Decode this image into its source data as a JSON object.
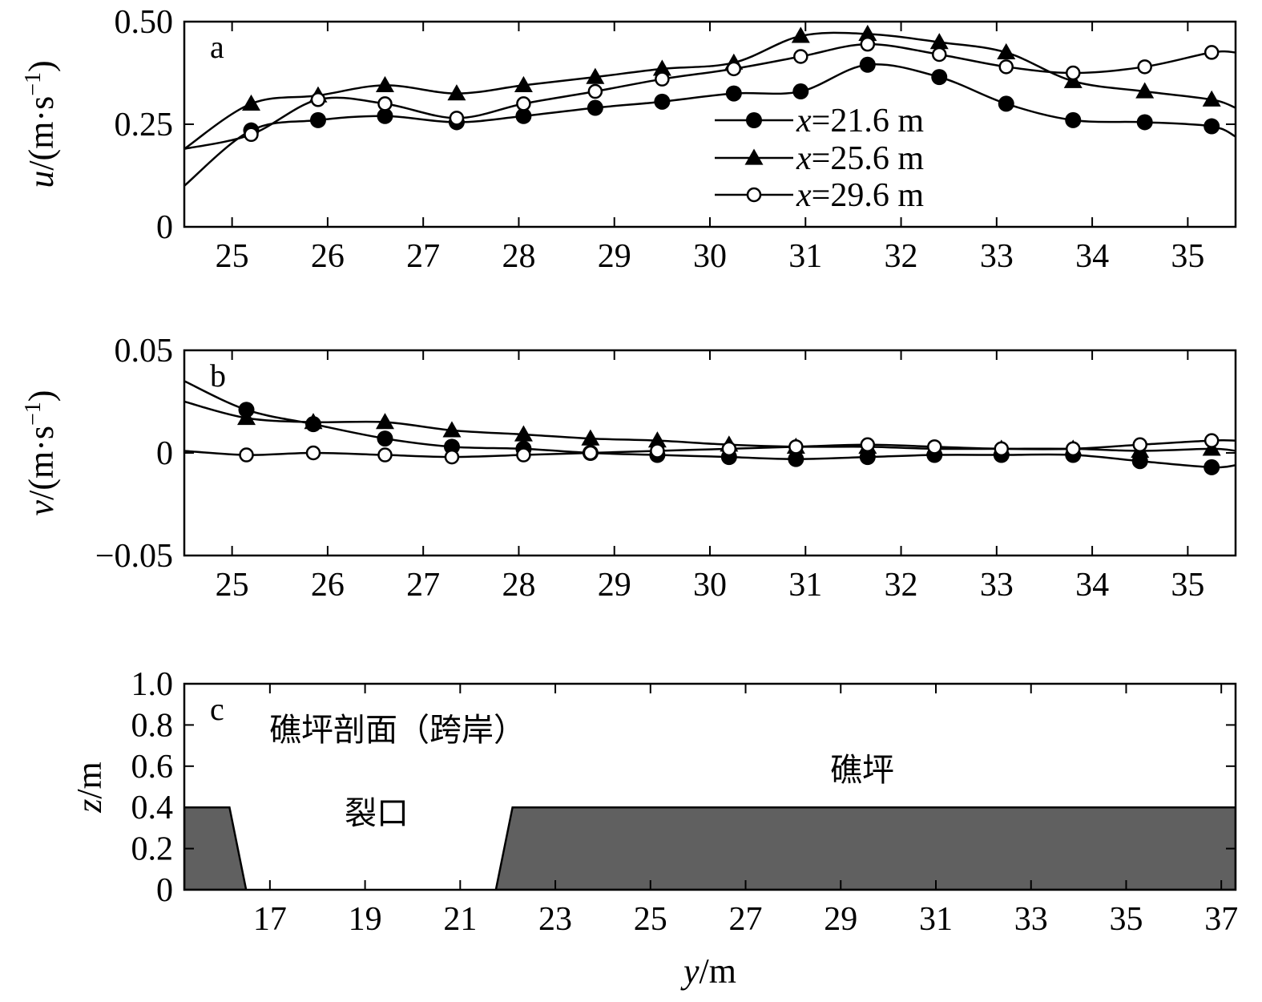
{
  "chart_data": [
    {
      "panel": "a",
      "type": "line",
      "ylabel": "u/(m·s⁻¹)",
      "ylabel_parts": {
        "var": "u",
        "unit": "/(m·s",
        "exp": "−1",
        "close": ")"
      },
      "xlim": [
        24.5,
        35.5
      ],
      "ylim": [
        0,
        0.5
      ],
      "xticks": [
        25,
        26,
        27,
        28,
        29,
        30,
        31,
        32,
        33,
        34,
        35
      ],
      "yticks": [
        0,
        0.25,
        0.5
      ],
      "ytick_labels": [
        "0",
        "0.25",
        "0.50"
      ],
      "legend_placement": "center-right",
      "series": [
        {
          "name": "x=21.6 m",
          "name_parts": {
            "var": "x",
            "rest": "=21.6 m"
          },
          "marker": "filled-circle",
          "x": [
            24.5,
            25.2,
            25.9,
            26.6,
            27.35,
            28.05,
            28.8,
            29.5,
            30.25,
            30.95,
            31.65,
            32.4,
            33.1,
            33.8,
            34.55,
            35.25,
            35.5
          ],
          "y": [
            0.1,
            0.235,
            0.26,
            0.27,
            0.255,
            0.27,
            0.29,
            0.305,
            0.325,
            0.33,
            0.395,
            0.365,
            0.3,
            0.26,
            0.255,
            0.245,
            0.22
          ],
          "markers_x": [
            25.2,
            25.9,
            26.6,
            27.35,
            28.05,
            28.8,
            29.5,
            30.25,
            30.95,
            31.65,
            32.4,
            33.1,
            33.8,
            34.55,
            35.25
          ],
          "markers_y": [
            0.235,
            0.26,
            0.27,
            0.255,
            0.27,
            0.29,
            0.305,
            0.325,
            0.33,
            0.395,
            0.365,
            0.3,
            0.26,
            0.255,
            0.245
          ]
        },
        {
          "name": "x=25.6 m",
          "name_parts": {
            "var": "x",
            "rest": "=25.6 m"
          },
          "marker": "filled-triangle",
          "x": [
            24.5,
            25.2,
            25.9,
            26.6,
            27.35,
            28.05,
            28.8,
            29.5,
            30.25,
            30.95,
            31.65,
            32.4,
            33.1,
            33.8,
            34.55,
            35.25,
            35.5
          ],
          "y": [
            0.19,
            0.3,
            0.32,
            0.345,
            0.325,
            0.345,
            0.365,
            0.385,
            0.4,
            0.465,
            0.47,
            0.45,
            0.425,
            0.355,
            0.33,
            0.31,
            0.29
          ],
          "markers_x": [
            25.2,
            25.9,
            26.6,
            27.35,
            28.05,
            28.8,
            29.5,
            30.25,
            30.95,
            31.65,
            32.4,
            33.1,
            33.8,
            34.55,
            35.25
          ],
          "markers_y": [
            0.3,
            0.32,
            0.345,
            0.325,
            0.345,
            0.365,
            0.385,
            0.4,
            0.465,
            0.47,
            0.45,
            0.425,
            0.355,
            0.33,
            0.31
          ]
        },
        {
          "name": "x=29.6 m",
          "name_parts": {
            "var": "x",
            "rest": "=29.6 m"
          },
          "marker": "open-circle",
          "x": [
            24.5,
            25.2,
            25.9,
            26.6,
            27.35,
            28.05,
            28.8,
            29.5,
            30.25,
            30.95,
            31.65,
            32.4,
            33.1,
            33.8,
            34.55,
            35.25,
            35.5
          ],
          "y": [
            0.19,
            0.225,
            0.31,
            0.3,
            0.265,
            0.3,
            0.33,
            0.36,
            0.385,
            0.415,
            0.445,
            0.42,
            0.39,
            0.375,
            0.39,
            0.425,
            0.425
          ],
          "markers_x": [
            25.2,
            25.9,
            26.6,
            27.35,
            28.05,
            28.8,
            29.5,
            30.25,
            30.95,
            31.65,
            32.4,
            33.1,
            33.8,
            34.55,
            35.25
          ],
          "markers_y": [
            0.225,
            0.31,
            0.3,
            0.265,
            0.3,
            0.33,
            0.36,
            0.385,
            0.415,
            0.445,
            0.42,
            0.39,
            0.375,
            0.39,
            0.425
          ]
        }
      ]
    },
    {
      "panel": "b",
      "type": "line",
      "ylabel": "v/(m·s⁻¹)",
      "ylabel_parts": {
        "var": "v",
        "unit": "/(m·s",
        "exp": "−1",
        "close": ")"
      },
      "xlim": [
        24.5,
        35.5
      ],
      "ylim": [
        -0.05,
        0.05
      ],
      "xticks": [
        25,
        26,
        27,
        28,
        29,
        30,
        31,
        32,
        33,
        34,
        35
      ],
      "yticks": [
        -0.05,
        0,
        0.05
      ],
      "ytick_labels": [
        "−0.05",
        "0",
        "0.05"
      ],
      "series": [
        {
          "name": "x=21.6 m",
          "marker": "filled-circle",
          "x": [
            24.5,
            25.15,
            25.85,
            26.6,
            27.3,
            28.05,
            28.75,
            29.45,
            30.2,
            30.9,
            31.65,
            32.35,
            33.05,
            33.8,
            34.5,
            35.25,
            35.5
          ],
          "y": [
            0.035,
            0.021,
            0.014,
            0.007,
            0.003,
            0.002,
            0.0,
            -0.001,
            -0.002,
            -0.003,
            -0.002,
            -0.001,
            -0.001,
            -0.001,
            -0.004,
            -0.007,
            -0.006
          ],
          "markers_x": [
            25.15,
            25.85,
            26.6,
            27.3,
            28.05,
            28.75,
            29.45,
            30.2,
            30.9,
            31.65,
            32.35,
            33.05,
            33.8,
            34.5,
            35.25
          ],
          "markers_y": [
            0.021,
            0.014,
            0.007,
            0.003,
            0.002,
            0.0,
            -0.001,
            -0.002,
            -0.003,
            -0.002,
            -0.001,
            -0.001,
            -0.001,
            -0.004,
            -0.007
          ]
        },
        {
          "name": "x=25.6 m",
          "marker": "filled-triangle",
          "x": [
            24.5,
            25.15,
            25.85,
            26.6,
            27.3,
            28.05,
            28.75,
            29.45,
            30.2,
            30.9,
            31.65,
            32.35,
            33.05,
            33.8,
            34.5,
            35.25,
            35.5
          ],
          "y": [
            0.025,
            0.017,
            0.015,
            0.015,
            0.011,
            0.009,
            0.007,
            0.006,
            0.004,
            0.003,
            0.003,
            0.002,
            0.002,
            0.002,
            0.001,
            0.002,
            0.001
          ],
          "markers_x": [
            25.15,
            25.85,
            26.6,
            27.3,
            28.05,
            28.75,
            29.45,
            30.2,
            30.9,
            31.65,
            32.35,
            33.05,
            33.8,
            34.5,
            35.25
          ],
          "markers_y": [
            0.017,
            0.015,
            0.015,
            0.011,
            0.009,
            0.007,
            0.006,
            0.004,
            0.003,
            0.003,
            0.002,
            0.002,
            0.002,
            0.001,
            0.002
          ]
        },
        {
          "name": "x=29.6 m",
          "marker": "open-circle",
          "x": [
            24.5,
            25.15,
            25.85,
            26.6,
            27.3,
            28.05,
            28.75,
            29.45,
            30.2,
            30.9,
            31.65,
            32.35,
            33.05,
            33.8,
            34.5,
            35.25,
            35.5
          ],
          "y": [
            0.001,
            -0.001,
            0.0,
            -0.001,
            -0.002,
            -0.001,
            0.0,
            0.001,
            0.002,
            0.003,
            0.004,
            0.003,
            0.002,
            0.002,
            0.004,
            0.006,
            0.006
          ],
          "markers_x": [
            25.15,
            25.85,
            26.6,
            27.3,
            28.05,
            28.75,
            29.45,
            30.2,
            30.9,
            31.65,
            32.35,
            33.05,
            33.8,
            34.5,
            35.25
          ],
          "markers_y": [
            -0.001,
            0.0,
            -0.001,
            -0.002,
            -0.001,
            0.0,
            0.001,
            0.002,
            0.003,
            0.004,
            0.003,
            0.002,
            0.002,
            0.004,
            0.006
          ]
        }
      ]
    },
    {
      "panel": "c",
      "type": "area",
      "title": "礁坪剖面（跨岸）",
      "ylabel": "z/m",
      "ylabel_parts": {
        "var": "z",
        "unit": "/m"
      },
      "xlabel": "y/m",
      "xlabel_parts": {
        "var": "y",
        "unit": "/m"
      },
      "xlim": [
        15.2,
        37.3
      ],
      "ylim": [
        0,
        1.0
      ],
      "xticks": [
        17,
        19,
        21,
        23,
        25,
        27,
        29,
        31,
        33,
        35,
        37
      ],
      "yticks": [
        0,
        0.2,
        0.4,
        0.6,
        0.8,
        1.0
      ],
      "ytick_labels": [
        "0",
        "0.2",
        "0.4",
        "0.6",
        "0.8",
        "1.0"
      ],
      "annotations": [
        "裂口",
        "礁坪"
      ],
      "profile_left": {
        "x": [
          15.2,
          16.15,
          16.5,
          15.2
        ],
        "y": [
          0.4,
          0.4,
          0.0,
          0.0
        ]
      },
      "profile_right": {
        "x": [
          21.75,
          22.1,
          37.3,
          37.3
        ],
        "y": [
          0.0,
          0.4,
          0.4,
          0.0
        ]
      },
      "fill_color": "#606060"
    }
  ]
}
